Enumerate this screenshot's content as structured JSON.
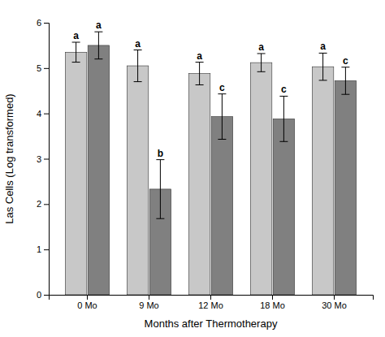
{
  "chart_data": {
    "type": "bar",
    "categories": [
      "0 Mo",
      "9 Mo",
      "12 Mo",
      "18 Mo",
      "30 Mo"
    ],
    "series": [
      {
        "color": "#c8c8c8",
        "values": [
          5.35,
          5.05,
          4.88,
          5.12,
          5.03
        ],
        "errors": [
          0.22,
          0.35,
          0.25,
          0.2,
          0.3
        ],
        "labels": [
          "a",
          "a",
          "a",
          "a",
          "a"
        ]
      },
      {
        "color": "#808080",
        "values": [
          5.5,
          2.33,
          3.93,
          3.88,
          4.72
        ],
        "errors": [
          0.3,
          0.65,
          0.5,
          0.5,
          0.3
        ],
        "labels": [
          "a",
          "b",
          "c",
          "c",
          "c"
        ]
      }
    ],
    "xlabel": "Months after Thermotherapy",
    "ylabel": "Las Cells (Log transformed)",
    "ylim": [
      0,
      6.0
    ],
    "yticks": [
      0,
      1,
      2,
      3,
      4,
      5,
      6
    ],
    "grid": false
  }
}
